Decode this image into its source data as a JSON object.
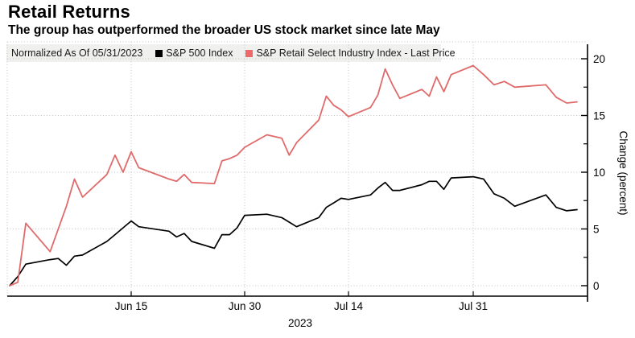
{
  "page": {
    "title": "Retail Returns",
    "subtitle": "The group has outperformed the broader US stock market since late May"
  },
  "legend": {
    "note": "Normalized As Of 05/31/2023",
    "items": [
      {
        "label": "S&P 500 Index",
        "color": "#000000"
      },
      {
        "label": "S&P Retail Select Industry Index - Last Price",
        "color": "#ec6a6a"
      }
    ]
  },
  "chart_data": {
    "type": "line",
    "title": "Retail Returns",
    "subtitle": "The group has outperformed the broader US stock market since late May",
    "xlabel": "2023",
    "ylabel": "Change (percent)",
    "ylim": [
      -1.4,
      21.3
    ],
    "y_ticks": [
      0,
      5,
      10,
      15,
      20
    ],
    "y_minor_ticks": [
      2.5,
      7.5,
      12.5,
      17.5
    ],
    "x_range": [
      "2023-05-31",
      "2023-08-10"
    ],
    "x_ticks": [
      {
        "date": "2023-06-15",
        "label": "Jun 15"
      },
      {
        "date": "2023-06-30",
        "label": "Jun 30"
      },
      {
        "date": "2023-07-14",
        "label": "Jul 14"
      },
      {
        "date": "2023-07-31",
        "label": "Jul 31"
      }
    ],
    "grid": true,
    "legend_position": "top-left",
    "normalized_as_of": "05/31/2023",
    "dates": [
      "2023-05-31",
      "2023-06-01",
      "2023-06-02",
      "2023-06-05",
      "2023-06-06",
      "2023-06-07",
      "2023-06-08",
      "2023-06-09",
      "2023-06-12",
      "2023-06-13",
      "2023-06-14",
      "2023-06-15",
      "2023-06-16",
      "2023-06-20",
      "2023-06-21",
      "2023-06-22",
      "2023-06-23",
      "2023-06-26",
      "2023-06-27",
      "2023-06-28",
      "2023-06-29",
      "2023-06-30",
      "2023-07-03",
      "2023-07-05",
      "2023-07-06",
      "2023-07-07",
      "2023-07-10",
      "2023-07-11",
      "2023-07-12",
      "2023-07-13",
      "2023-07-14",
      "2023-07-17",
      "2023-07-18",
      "2023-07-19",
      "2023-07-20",
      "2023-07-21",
      "2023-07-24",
      "2023-07-25",
      "2023-07-26",
      "2023-07-27",
      "2023-07-28",
      "2023-07-31",
      "2023-08-01",
      "2023-08-02",
      "2023-08-03",
      "2023-08-04",
      "2023-08-07",
      "2023-08-08",
      "2023-08-09",
      "2023-08-10"
    ],
    "series": [
      {
        "name": "S&P 500 Index",
        "color": "#000000",
        "values": [
          0,
          0.8,
          1.9,
          2.3,
          2.4,
          1.8,
          2.6,
          2.7,
          3.9,
          4.5,
          5.1,
          5.7,
          5.2,
          4.8,
          4.3,
          4.6,
          3.9,
          3.3,
          4.5,
          4.5,
          5.1,
          6.2,
          6.3,
          6.0,
          5.6,
          5.2,
          6.0,
          6.9,
          7.3,
          7.7,
          7.6,
          8.0,
          8.6,
          9.1,
          8.4,
          8.4,
          8.9,
          9.2,
          9.2,
          8.5,
          9.5,
          9.6,
          9.4,
          8.1,
          7.7,
          7.0,
          8.0,
          6.9,
          6.6,
          6.7
        ]
      },
      {
        "name": "S&P Retail Select Industry Index - Last Price",
        "color": "#e06a6a",
        "values": [
          0,
          0.3,
          5.5,
          3.0,
          5.0,
          7.0,
          9.4,
          7.8,
          9.8,
          11.5,
          10.0,
          11.8,
          10.4,
          9.4,
          9.2,
          9.8,
          9.1,
          9.0,
          11.0,
          11.2,
          11.5,
          12.2,
          13.3,
          13.0,
          11.5,
          12.6,
          14.6,
          16.7,
          15.9,
          15.5,
          14.9,
          15.7,
          16.8,
          19.1,
          17.7,
          16.5,
          17.3,
          16.7,
          18.4,
          17.1,
          18.6,
          19.4,
          18.6,
          17.7,
          18.0,
          17.5,
          17.7,
          16.6,
          16.1,
          16.2
        ]
      }
    ]
  }
}
